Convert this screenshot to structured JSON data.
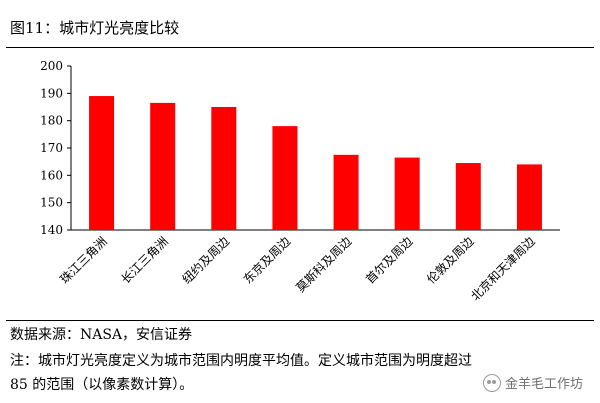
{
  "header": {
    "figure_title": "图11：城市灯光亮度比较"
  },
  "chart_data": {
    "type": "bar",
    "categories": [
      "珠江三角洲",
      "长江三角洲",
      "纽约及周边",
      "东京及周边",
      "莫斯科及周边",
      "首尔及周边",
      "伦敦及周边",
      "北京和天津周边"
    ],
    "values": [
      189,
      186.5,
      185,
      178,
      167.5,
      166.5,
      164.5,
      164
    ],
    "ylim": [
      140,
      200
    ],
    "yticks": [
      140,
      150,
      160,
      170,
      180,
      190,
      200
    ],
    "bar_color": "#ff0000",
    "grid": false,
    "legend": "none"
  },
  "footer": {
    "source": "数据来源：NASA，安信证券",
    "note_line1": "注：城市灯光亮度定义为城市范围内明度平均值。定义城市范围为明度超过",
    "note_line2": "85 的范围（以像素数计算）。"
  },
  "watermark": {
    "text": "金羊毛工作坊",
    "icon": "wechat-icon"
  }
}
